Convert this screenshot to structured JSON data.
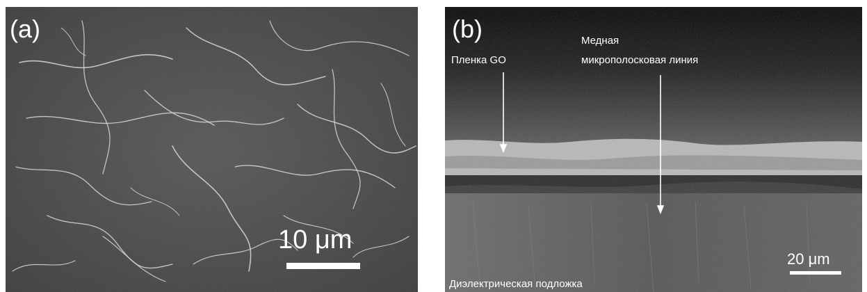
{
  "panel_a": {
    "label": "(a)",
    "scale_bar_text": "10 μm"
  },
  "panel_b": {
    "label": "(b)",
    "annotation_film": "Пленка GO",
    "annotation_line_1": "Медная",
    "annotation_line_2": "микрополосковая линия",
    "annotation_substrate": "Диэлектрическая подложка",
    "scale_bar_text": "20 μm"
  }
}
